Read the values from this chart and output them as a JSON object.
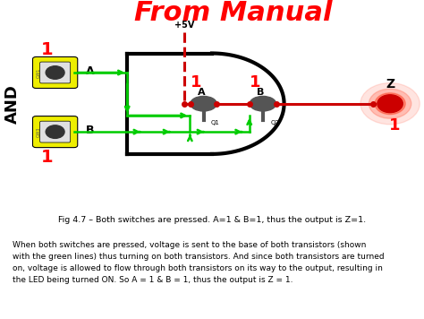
{
  "title": "From Manual",
  "title_color": "#FF0000",
  "title_fontsize": 22,
  "diagram_bg": "#CCCCCC",
  "fig_bg_color": "#FFFFFF",
  "caption": "Fig 4.7 – Both switches are pressed. A=1 & B=1, thus the output is Z=1.",
  "body_text": "When both switches are pressed, voltage is sent to the base of both transistors (shown\nwith the green lines) thus turning on both transistors. And since both transistors are turned\non, voltage is allowed to flow through both transistors on its way to the output, resulting in\nthe LED being turned ON. So A = 1 & B = 1, thus the output is Z = 1.",
  "and_label": "AND",
  "switch_a_label": "A",
  "switch_b_label": "B",
  "q1_label": "Q1",
  "q2_label": "Q2",
  "z_label": "Z",
  "vcc_label": "+5V",
  "num_1_color": "#FF0000",
  "green_color": "#00CC00",
  "red_line_color": "#CC0000",
  "transistor_color": "#555555",
  "switch_border_color": "#EEEE00",
  "switch_body_color": "#E0E0E0",
  "switch_btn_color": "#333333"
}
